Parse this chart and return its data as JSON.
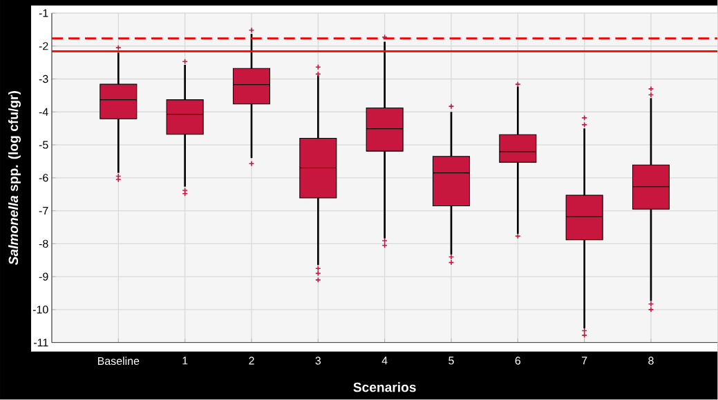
{
  "chart_data": {
    "type": "box",
    "xlabel": "Scenarios",
    "ylabel": "*Salmonella* spp. (log cfu/gr)",
    "categories": [
      "Baseline",
      "1",
      "2",
      "3",
      "4",
      "5",
      "6",
      "7",
      "8"
    ],
    "color": "#c8173f",
    "boxes": [
      {
        "low": -5.85,
        "q1": -4.21,
        "median": -3.63,
        "q3": -3.16,
        "high": -2.2,
        "outliers": [
          -2.05,
          -5.95,
          -6.05
        ]
      },
      {
        "low": -6.27,
        "q1": -4.68,
        "median": -4.07,
        "q3": -3.63,
        "high": -2.57,
        "outliers": [
          -2.47,
          -6.38,
          -6.48
        ]
      },
      {
        "low": -5.4,
        "q1": -3.76,
        "median": -3.17,
        "q3": -2.68,
        "high": -1.63,
        "outliers": [
          -1.52,
          -5.57
        ]
      },
      {
        "low": -8.65,
        "q1": -6.61,
        "median": -5.7,
        "q3": -4.8,
        "high": -2.89,
        "outliers": [
          -2.64,
          -2.85,
          -8.75,
          -8.9,
          -9.1
        ]
      },
      {
        "low": -7.84,
        "q1": -5.19,
        "median": -4.51,
        "q3": -3.88,
        "high": -1.87,
        "outliers": [
          -1.73,
          -7.91,
          -8.05
        ]
      },
      {
        "low": -8.33,
        "q1": -6.85,
        "median": -5.85,
        "q3": -5.35,
        "high": -4.0,
        "outliers": [
          -3.83,
          -8.4,
          -8.57
        ]
      },
      {
        "low": -7.7,
        "q1": -5.53,
        "median": -5.21,
        "q3": -4.69,
        "high": -3.23,
        "outliers": [
          -3.16,
          -7.77
        ]
      },
      {
        "low": -10.57,
        "q1": -7.88,
        "median": -7.18,
        "q3": -6.53,
        "high": -4.5,
        "outliers": [
          -4.18,
          -4.39,
          -10.64,
          -10.78
        ]
      },
      {
        "low": -9.74,
        "q1": -6.95,
        "median": -6.27,
        "q3": -5.61,
        "high": -3.58,
        "outliers": [
          -3.3,
          -3.48,
          -9.83,
          -10.0
        ]
      }
    ],
    "ylim": [
      -11,
      -1
    ],
    "yticks": [
      -11,
      -10,
      -9,
      -8,
      -7,
      -6,
      -5,
      -4,
      -3,
      -2,
      -1
    ],
    "grid": true,
    "ref_lines": [
      {
        "axis": "y",
        "value": -1.77,
        "color": "#ff0000",
        "line_style": "dashed"
      },
      {
        "axis": "y",
        "value": -2.16,
        "color": "#ff0000",
        "line_style": "solid"
      }
    ]
  }
}
